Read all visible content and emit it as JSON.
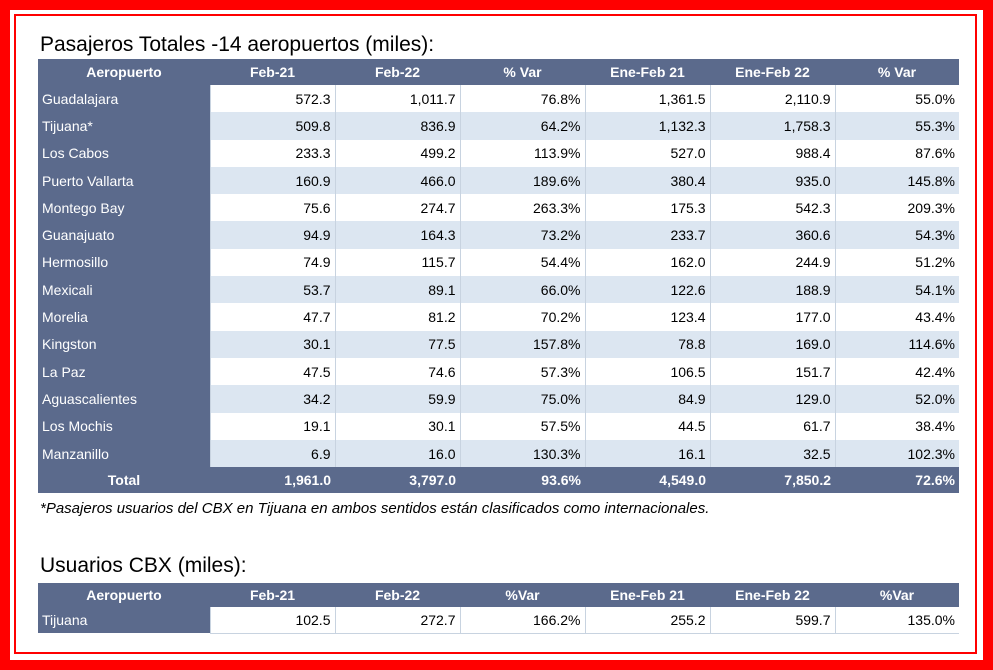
{
  "section1": {
    "title": "Pasajeros Totales -14 aeropuertos (miles):",
    "headers": [
      "Aeropuerto",
      "Feb-21",
      "Feb-22",
      "% Var",
      "Ene-Feb 21",
      "Ene-Feb 22",
      "% Var"
    ],
    "rows": [
      [
        "Guadalajara",
        "572.3",
        "1,011.7",
        "76.8%",
        "1,361.5",
        "2,110.9",
        "55.0%"
      ],
      [
        "Tijuana*",
        "509.8",
        "836.9",
        "64.2%",
        "1,132.3",
        "1,758.3",
        "55.3%"
      ],
      [
        "Los Cabos",
        "233.3",
        "499.2",
        "113.9%",
        "527.0",
        "988.4",
        "87.6%"
      ],
      [
        "Puerto Vallarta",
        "160.9",
        "466.0",
        "189.6%",
        "380.4",
        "935.0",
        "145.8%"
      ],
      [
        "Montego Bay",
        "75.6",
        "274.7",
        "263.3%",
        "175.3",
        "542.3",
        "209.3%"
      ],
      [
        "Guanajuato",
        "94.9",
        "164.3",
        "73.2%",
        "233.7",
        "360.6",
        "54.3%"
      ],
      [
        "Hermosillo",
        "74.9",
        "115.7",
        "54.4%",
        "162.0",
        "244.9",
        "51.2%"
      ],
      [
        "Mexicali",
        "53.7",
        "89.1",
        "66.0%",
        "122.6",
        "188.9",
        "54.1%"
      ],
      [
        "Morelia",
        "47.7",
        "81.2",
        "70.2%",
        "123.4",
        "177.0",
        "43.4%"
      ],
      [
        "Kingston",
        "30.1",
        "77.5",
        "157.8%",
        "78.8",
        "169.0",
        "114.6%"
      ],
      [
        "La Paz",
        "47.5",
        "74.6",
        "57.3%",
        "106.5",
        "151.7",
        "42.4%"
      ],
      [
        "Aguascalientes",
        "34.2",
        "59.9",
        "75.0%",
        "84.9",
        "129.0",
        "52.0%"
      ],
      [
        "Los Mochis",
        "19.1",
        "30.1",
        "57.5%",
        "44.5",
        "61.7",
        "38.4%"
      ],
      [
        "Manzanillo",
        "6.9",
        "16.0",
        "130.3%",
        "16.1",
        "32.5",
        "102.3%"
      ]
    ],
    "total": [
      "Total",
      "1,961.0",
      "3,797.0",
      "93.6%",
      "4,549.0",
      "7,850.2",
      "72.6%"
    ],
    "note": "*Pasajeros usuarios del CBX en Tijuana en ambos sentidos están clasificados como internacionales."
  },
  "section2": {
    "title": "Usuarios CBX (miles):",
    "headers": [
      "Aeropuerto",
      "Feb-21",
      "Feb-22",
      "%Var",
      "Ene-Feb 21",
      "Ene-Feb 22",
      "%Var"
    ],
    "rows": [
      [
        "Tijuana",
        "102.5",
        "272.7",
        "166.2%",
        "255.2",
        "599.7",
        "135.0%"
      ]
    ]
  },
  "colors": {
    "header_bg": "#5b6a8c",
    "stripe_bg": "#dce6f1",
    "border": "#ff0000"
  }
}
